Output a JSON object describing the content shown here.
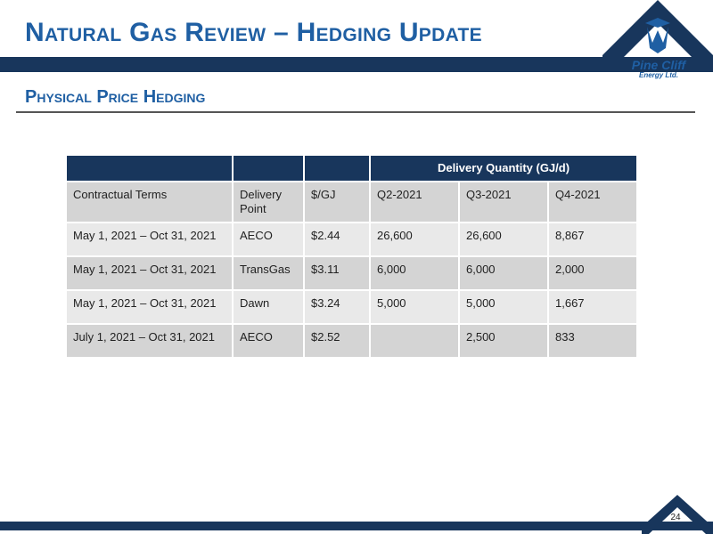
{
  "slide": {
    "title": "Natural Gas Review – Hedging Update",
    "subtitle": "Physical Price Hedging",
    "page_number": "24"
  },
  "logo": {
    "line1": "Pine Cliff",
    "line2": "Energy Ltd.",
    "icon": "pine-cliff-mountain-logo",
    "brand_color": "#1f5fa3",
    "band_color": "#18365c"
  },
  "table": {
    "group_header": "Delivery Quantity (GJ/d)",
    "columns": [
      "Contractual Terms",
      "Delivery Point",
      "$/GJ",
      "Q2-2021",
      "Q3-2021",
      "Q4-2021"
    ],
    "rows": [
      [
        "May 1, 2021 – Oct 31, 2021",
        "AECO",
        "$2.44",
        "26,600",
        "26,600",
        "8,867"
      ],
      [
        "May 1, 2021 – Oct 31, 2021",
        "TransGas",
        "$3.11",
        "6,000",
        "6,000",
        "2,000"
      ],
      [
        "May 1, 2021 – Oct 31, 2021",
        "Dawn",
        "$3.24",
        "5,000",
        "5,000",
        "1,667"
      ],
      [
        "July 1, 2021 – Oct 31, 2021",
        "AECO",
        "$2.52",
        "",
        "2,500",
        "833"
      ]
    ]
  }
}
